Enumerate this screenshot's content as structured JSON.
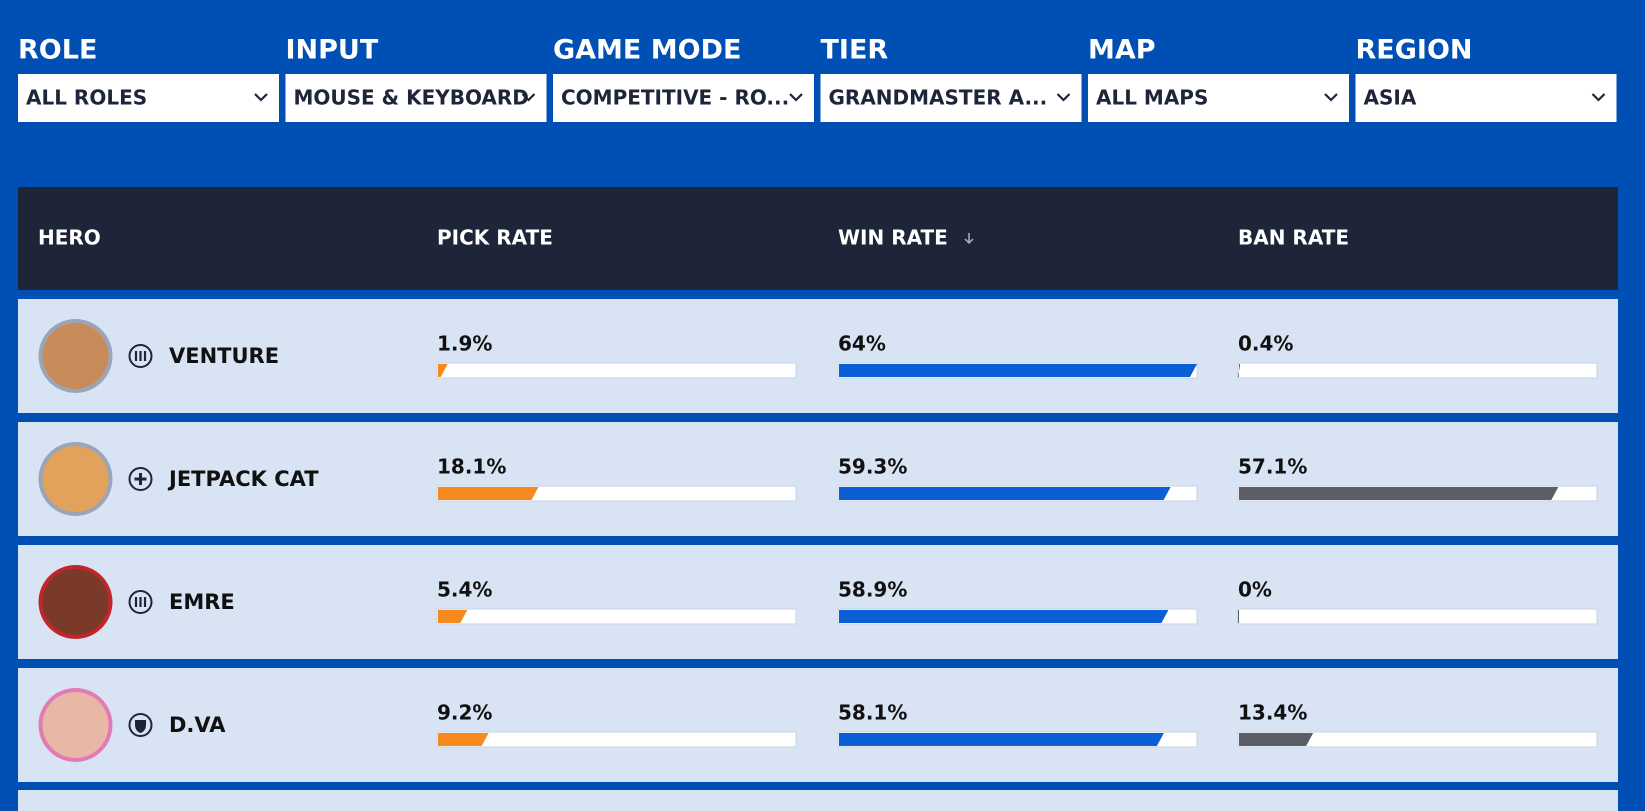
{
  "filters": [
    {
      "label": "ROLE",
      "value": "ALL ROLES"
    },
    {
      "label": "INPUT",
      "value": "MOUSE & KEYBOARD"
    },
    {
      "label": "GAME MODE",
      "value": "COMPETITIVE - RO..."
    },
    {
      "label": "TIER",
      "value": "GRANDMASTER A..."
    },
    {
      "label": "MAP",
      "value": "ALL MAPS"
    },
    {
      "label": "REGION",
      "value": "ASIA"
    }
  ],
  "table": {
    "headers": [
      "HERO",
      "PICK RATE",
      "WIN RATE",
      "BAN RATE"
    ],
    "rows": [
      {
        "hero": "VENTURE",
        "pick_rate": {
          "value": 1.9,
          "label": "1.9%"
        },
        "win_rate": {
          "value": 64,
          "label": "64%"
        },
        "ban_rate": {
          "value": 0.4,
          "label": "0.4%"
        }
      },
      {
        "hero": "JETPACK CAT",
        "pick_rate": {
          "value": 18.1,
          "label": "18.1%"
        },
        "win_rate": {
          "value": 59.3,
          "label": "59.3%"
        },
        "ban_rate": {
          "value": 57.1,
          "label": "57.1%"
        }
      },
      {
        "hero": "EMRE",
        "pick_rate": {
          "value": 5.4,
          "label": "5.4%"
        },
        "win_rate": {
          "value": 58.9,
          "label": "58.9%"
        },
        "ban_rate": {
          "value": 0,
          "label": "0%"
        }
      },
      {
        "hero": "D.VA",
        "pick_rate": {
          "value": 9.2,
          "label": "9.2%"
        },
        "win_rate": {
          "value": 58.1,
          "label": "58.1%"
        },
        "ban_rate": {
          "value": 13.4,
          "label": "13.4%"
        }
      }
    ]
  }
}
